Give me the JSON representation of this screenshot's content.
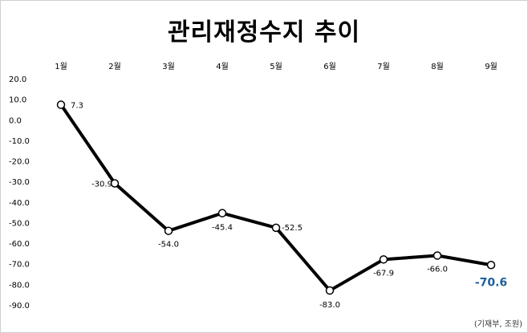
{
  "title": "관리재정수지 추이",
  "source": "(기재부, 조원)",
  "chart_data": {
    "type": "line",
    "title": "관리재정수지 추이",
    "categories": [
      "1월",
      "2월",
      "3월",
      "4월",
      "5월",
      "6월",
      "7월",
      "8월",
      "9월"
    ],
    "series": [
      {
        "values": [
          7.3,
          -30.9,
          -54.0,
          -45.4,
          -52.5,
          -83.0,
          -67.9,
          -66.0,
          -70.6
        ]
      }
    ],
    "data_labels": [
      "7.3",
      "-30.9",
      "-54.0",
      "-45.4",
      "-52.5",
      "-83.0",
      "-67.9",
      "-66.0",
      "-70.6"
    ],
    "y_ticks": [
      "20.0",
      "10.0",
      "0.0",
      "-10.0",
      "-20.0",
      "-30.0",
      "-40.0",
      "-50.0",
      "-60.0",
      "-70.0",
      "-80.0",
      "-90.0"
    ],
    "ylim": [
      -90,
      20
    ],
    "x_axis_position": "top",
    "grid": false,
    "legend": "none",
    "colors": {
      "line": "#000000",
      "marker_fill": "#ffffff",
      "highlight_label": "#1f5f9b"
    }
  }
}
